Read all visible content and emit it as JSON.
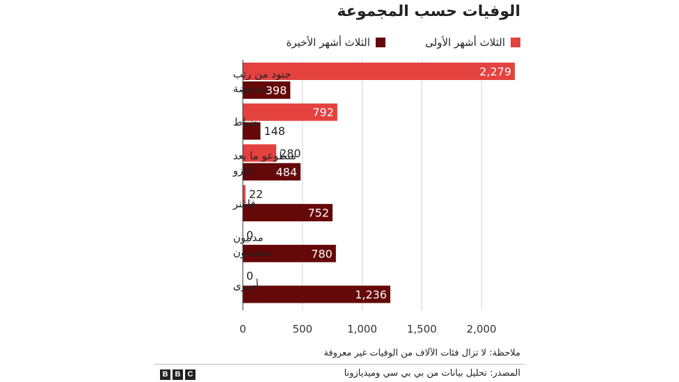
{
  "chart_data": {
    "type": "bar",
    "orientation": "horizontal",
    "title": "الوفيات حسب المجموعة",
    "categories": [
      [
        "جنود من رتب",
        "منخفضة"
      ],
      [
        "ضباط"
      ],
      [
        "متطوعو ما بعد",
        "الغزو"
      ],
      [
        "فاغنر"
      ],
      [
        "مدنيون",
        "محشدون"
      ],
      [
        "أسرى"
      ]
    ],
    "series": [
      {
        "name": "الثلاث أشهر الأولى",
        "color": "#e4423f",
        "values": [
          2279,
          792,
          280,
          22,
          0,
          0
        ],
        "labels": [
          "2,279",
          "792",
          "280",
          "22",
          "0",
          "0"
        ]
      },
      {
        "name": "الثلاث أشهر الأخيرة",
        "color": "#650808",
        "values": [
          398,
          148,
          484,
          752,
          780,
          1236
        ],
        "labels": [
          "398",
          "148",
          "484",
          "752",
          "780",
          "1,236"
        ]
      }
    ],
    "xlim": [
      0,
      2279
    ],
    "xticks": [
      0,
      500,
      1000,
      1500,
      2000
    ],
    "xtick_labels": [
      "0",
      "500",
      "1,000",
      "1,500",
      "2,000"
    ],
    "grid": true,
    "legend_position": "top-right"
  },
  "note": "ملاحظة: لا تزال فئات الآلاف من الوفيات غير معروفة",
  "source": "المصدر: تحليل بيانات من بي بي سي وميديازونا",
  "logo": [
    "B",
    "B",
    "C"
  ]
}
